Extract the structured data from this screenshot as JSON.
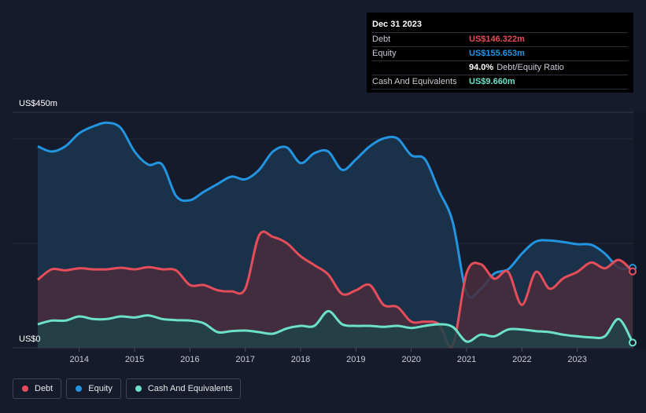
{
  "tooltip": {
    "date": "Dec 31 2023",
    "rows": [
      {
        "label": "Debt",
        "value": "US$146.322m",
        "color": "#e64d5a"
      },
      {
        "label": "Equity",
        "value": "US$155.653m",
        "color": "#2394e0"
      },
      {
        "label": "",
        "value": "94.0%",
        "extra": "Debt/Equity Ratio",
        "color": "#ffffff"
      },
      {
        "label": "Cash And Equivalents",
        "value": "US$9.660m",
        "color": "#6de0c8"
      }
    ]
  },
  "legend": [
    {
      "label": "Debt",
      "color": "#e64d5a"
    },
    {
      "label": "Equity",
      "color": "#2394e0"
    },
    {
      "label": "Cash And Equivalents",
      "color": "#6de0c8"
    }
  ],
  "chart_data": {
    "type": "area",
    "y_top_label": "US$450m",
    "y_bottom_label": "US$0",
    "ylim": [
      0,
      450
    ],
    "xlim": [
      2013.25,
      2024.0
    ],
    "x_ticks": [
      2014,
      2015,
      2016,
      2017,
      2018,
      2019,
      2020,
      2021,
      2022,
      2023
    ],
    "x_tick_labels": [
      "2014",
      "2015",
      "2016",
      "2017",
      "2018",
      "2019",
      "2020",
      "2021",
      "2022",
      "2023"
    ],
    "grid": true,
    "legend_position": "bottom-left",
    "series": [
      {
        "name": "Equity",
        "color": "#2394e0",
        "fill": "#1b3550",
        "points": [
          [
            2013.25,
            385
          ],
          [
            2013.5,
            375
          ],
          [
            2013.75,
            385
          ],
          [
            2014.0,
            410
          ],
          [
            2014.25,
            423
          ],
          [
            2014.5,
            430
          ],
          [
            2014.75,
            420
          ],
          [
            2015.0,
            375
          ],
          [
            2015.25,
            350
          ],
          [
            2015.5,
            350
          ],
          [
            2015.75,
            290
          ],
          [
            2016.0,
            282
          ],
          [
            2016.25,
            298
          ],
          [
            2016.5,
            313
          ],
          [
            2016.75,
            327
          ],
          [
            2017.0,
            322
          ],
          [
            2017.25,
            340
          ],
          [
            2017.5,
            375
          ],
          [
            2017.75,
            383
          ],
          [
            2018.0,
            353
          ],
          [
            2018.25,
            372
          ],
          [
            2018.5,
            375
          ],
          [
            2018.75,
            340
          ],
          [
            2019.0,
            360
          ],
          [
            2019.25,
            385
          ],
          [
            2019.5,
            400
          ],
          [
            2019.75,
            400
          ],
          [
            2020.0,
            368
          ],
          [
            2020.25,
            360
          ],
          [
            2020.5,
            300
          ],
          [
            2020.75,
            240
          ],
          [
            2021.0,
            105
          ],
          [
            2021.25,
            112
          ],
          [
            2021.5,
            142
          ],
          [
            2021.75,
            150
          ],
          [
            2022.0,
            180
          ],
          [
            2022.25,
            203
          ],
          [
            2022.5,
            205
          ],
          [
            2022.75,
            202
          ],
          [
            2023.0,
            198
          ],
          [
            2023.25,
            197
          ],
          [
            2023.5,
            180
          ],
          [
            2023.75,
            153
          ],
          [
            2024.0,
            153
          ]
        ]
      },
      {
        "name": "Debt",
        "color": "#e64d5a",
        "fill": "#4a2d3c",
        "points": [
          [
            2013.25,
            130
          ],
          [
            2013.5,
            150
          ],
          [
            2013.75,
            148
          ],
          [
            2014.0,
            152
          ],
          [
            2014.25,
            150
          ],
          [
            2014.5,
            150
          ],
          [
            2014.75,
            153
          ],
          [
            2015.0,
            150
          ],
          [
            2015.25,
            154
          ],
          [
            2015.5,
            150
          ],
          [
            2015.75,
            148
          ],
          [
            2016.0,
            120
          ],
          [
            2016.25,
            120
          ],
          [
            2016.5,
            110
          ],
          [
            2016.75,
            108
          ],
          [
            2017.0,
            113
          ],
          [
            2017.25,
            215
          ],
          [
            2017.5,
            212
          ],
          [
            2017.75,
            200
          ],
          [
            2018.0,
            175
          ],
          [
            2018.25,
            158
          ],
          [
            2018.5,
            140
          ],
          [
            2018.75,
            103
          ],
          [
            2019.0,
            110
          ],
          [
            2019.25,
            120
          ],
          [
            2019.5,
            82
          ],
          [
            2019.75,
            78
          ],
          [
            2020.0,
            50
          ],
          [
            2020.25,
            50
          ],
          [
            2020.5,
            45
          ],
          [
            2020.75,
            5
          ],
          [
            2021.0,
            143
          ],
          [
            2021.25,
            160
          ],
          [
            2021.5,
            132
          ],
          [
            2021.75,
            145
          ],
          [
            2022.0,
            82
          ],
          [
            2022.25,
            145
          ],
          [
            2022.5,
            113
          ],
          [
            2022.75,
            133
          ],
          [
            2023.0,
            145
          ],
          [
            2023.25,
            163
          ],
          [
            2023.5,
            152
          ],
          [
            2023.75,
            168
          ],
          [
            2024.0,
            146
          ]
        ]
      },
      {
        "name": "Cash And Equivalents",
        "color": "#6de0c8",
        "fill": "#1e4448",
        "points": [
          [
            2013.25,
            45
          ],
          [
            2013.5,
            52
          ],
          [
            2013.75,
            52
          ],
          [
            2014.0,
            60
          ],
          [
            2014.25,
            55
          ],
          [
            2014.5,
            55
          ],
          [
            2014.75,
            60
          ],
          [
            2015.0,
            58
          ],
          [
            2015.25,
            62
          ],
          [
            2015.5,
            55
          ],
          [
            2015.75,
            53
          ],
          [
            2016.0,
            52
          ],
          [
            2016.25,
            47
          ],
          [
            2016.5,
            30
          ],
          [
            2016.75,
            32
          ],
          [
            2017.0,
            33
          ],
          [
            2017.25,
            30
          ],
          [
            2017.5,
            27
          ],
          [
            2017.75,
            37
          ],
          [
            2018.0,
            42
          ],
          [
            2018.25,
            42
          ],
          [
            2018.5,
            70
          ],
          [
            2018.75,
            45
          ],
          [
            2019.0,
            42
          ],
          [
            2019.25,
            42
          ],
          [
            2019.5,
            40
          ],
          [
            2019.75,
            42
          ],
          [
            2020.0,
            38
          ],
          [
            2020.25,
            42
          ],
          [
            2020.5,
            45
          ],
          [
            2020.75,
            40
          ],
          [
            2021.0,
            12
          ],
          [
            2021.25,
            25
          ],
          [
            2021.5,
            22
          ],
          [
            2021.75,
            35
          ],
          [
            2022.0,
            35
          ],
          [
            2022.25,
            32
          ],
          [
            2022.5,
            30
          ],
          [
            2022.75,
            25
          ],
          [
            2023.0,
            22
          ],
          [
            2023.25,
            20
          ],
          [
            2023.5,
            22
          ],
          [
            2023.75,
            55
          ],
          [
            2024.0,
            10
          ]
        ]
      }
    ]
  }
}
